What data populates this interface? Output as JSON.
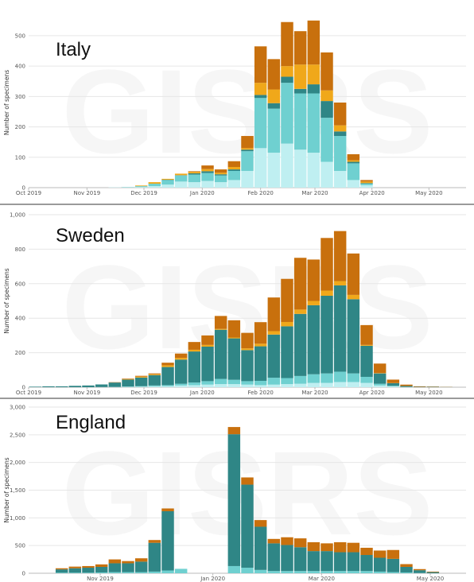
{
  "colors": {
    "pale": "#bfeff1",
    "light": "#6fd0d0",
    "dark": "#2f8686",
    "yellow": "#f0a81a",
    "orange": "#c8700d",
    "grid": "#e6e6e6",
    "axis": "#bbbbbb"
  },
  "chart_data": [
    {
      "type": "bar",
      "stacked": true,
      "title": "Italy",
      "ylabel": "Number of specimens",
      "watermark": "GISRS",
      "ylim": [
        0,
        560
      ],
      "yticks": [
        0,
        100,
        200,
        300,
        400,
        500
      ],
      "ytick_labels": [
        "0",
        "100",
        "200",
        "300",
        "400",
        "500"
      ],
      "xticks": [
        {
          "label": "Oct 2019",
          "at": 0
        },
        {
          "label": "Nov 2019",
          "at": 4.4
        },
        {
          "label": "Dec 2019",
          "at": 8.7
        },
        {
          "label": "Jan 2020",
          "at": 13.1
        },
        {
          "label": "Feb 2020",
          "at": 17.5
        },
        {
          "label": "Mar 2020",
          "at": 21.6
        },
        {
          "label": "Apr 2020",
          "at": 25.9
        },
        {
          "label": "May 2020",
          "at": 30.2
        }
      ],
      "weeks": 33,
      "series": [
        {
          "color": "pale",
          "values": [
            0,
            0,
            0,
            0,
            0,
            0,
            1,
            1,
            2,
            5,
            10,
            20,
            18,
            22,
            18,
            25,
            55,
            130,
            115,
            145,
            125,
            115,
            85,
            55,
            25,
            8,
            0,
            0,
            0,
            0,
            0,
            0,
            0
          ]
        },
        {
          "color": "light",
          "values": [
            0,
            0,
            0,
            0,
            0,
            0,
            0,
            1,
            3,
            8,
            15,
            20,
            25,
            26,
            22,
            30,
            65,
            165,
            145,
            200,
            185,
            195,
            145,
            115,
            55,
            5,
            0,
            0,
            0,
            0,
            0,
            0,
            0
          ]
        },
        {
          "color": "dark",
          "values": [
            0,
            0,
            0,
            0,
            0,
            0,
            0,
            0,
            0,
            0,
            1,
            1,
            4,
            6,
            4,
            5,
            5,
            10,
            18,
            20,
            15,
            30,
            55,
            15,
            5,
            2,
            0,
            0,
            0,
            0,
            0,
            0,
            0
          ]
        },
        {
          "color": "yellow",
          "values": [
            0,
            0,
            0,
            0,
            0,
            0,
            0,
            0,
            2,
            5,
            3,
            5,
            5,
            7,
            5,
            8,
            5,
            40,
            45,
            35,
            80,
            65,
            35,
            20,
            5,
            5,
            0,
            0,
            0,
            0,
            0,
            0,
            0
          ]
        },
        {
          "color": "orange",
          "values": [
            0,
            0,
            0,
            0,
            0,
            0,
            0,
            0,
            0,
            0,
            0,
            0,
            2,
            12,
            11,
            19,
            40,
            120,
            100,
            145,
            110,
            145,
            125,
            75,
            20,
            5,
            0,
            0,
            0,
            0,
            0,
            0,
            0
          ]
        }
      ]
    },
    {
      "type": "bar",
      "stacked": true,
      "title": "Sweden",
      "ylabel": "Number of specimens",
      "watermark": "GISRS",
      "ylim": [
        0,
        1000
      ],
      "yticks": [
        0,
        200,
        400,
        600,
        800,
        1000
      ],
      "ytick_labels": [
        "0",
        "200",
        "400",
        "600",
        "800",
        "1,000"
      ],
      "xticks": [
        {
          "label": "Oct 2019",
          "at": 0
        },
        {
          "label": "Nov 2019",
          "at": 4.4
        },
        {
          "label": "Dec 2019",
          "at": 8.7
        },
        {
          "label": "Jan 2020",
          "at": 13.1
        },
        {
          "label": "Feb 2020",
          "at": 17.5
        },
        {
          "label": "Mar 2020",
          "at": 21.6
        },
        {
          "label": "Apr 2020",
          "at": 25.9
        },
        {
          "label": "May 2020",
          "at": 30.2
        }
      ],
      "weeks": 33,
      "series": [
        {
          "color": "pale",
          "values": [
            0,
            0,
            0,
            0,
            0,
            1,
            1,
            2,
            3,
            5,
            6,
            10,
            12,
            15,
            18,
            18,
            15,
            12,
            15,
            18,
            20,
            25,
            25,
            30,
            30,
            25,
            10,
            5,
            1,
            0,
            0,
            0,
            0
          ]
        },
        {
          "color": "light",
          "values": [
            0,
            0,
            0,
            0,
            0,
            0,
            1,
            2,
            3,
            5,
            6,
            10,
            15,
            20,
            30,
            25,
            20,
            25,
            40,
            35,
            45,
            50,
            55,
            60,
            50,
            35,
            10,
            3,
            1,
            0,
            0,
            0,
            0
          ]
        },
        {
          "color": "dark",
          "values": [
            3,
            5,
            5,
            8,
            10,
            15,
            25,
            40,
            50,
            60,
            105,
            140,
            180,
            200,
            285,
            240,
            180,
            200,
            250,
            300,
            360,
            400,
            450,
            500,
            430,
            180,
            60,
            15,
            5,
            2,
            2,
            1,
            0
          ]
        },
        {
          "color": "yellow",
          "values": [
            0,
            0,
            0,
            0,
            0,
            0,
            0,
            3,
            5,
            5,
            10,
            10,
            10,
            10,
            5,
            5,
            10,
            15,
            20,
            25,
            25,
            25,
            30,
            25,
            25,
            5,
            2,
            1,
            0,
            0,
            0,
            0,
            0
          ]
        },
        {
          "color": "orange",
          "values": [
            0,
            0,
            0,
            0,
            0,
            0,
            2,
            3,
            5,
            5,
            15,
            25,
            45,
            55,
            75,
            100,
            90,
            125,
            195,
            250,
            300,
            240,
            305,
            290,
            240,
            115,
            55,
            20,
            8,
            3,
            2,
            1,
            0
          ]
        }
      ]
    },
    {
      "type": "bar",
      "stacked": true,
      "title": "England",
      "ylabel": "Number of specimens",
      "watermark": "GISRS",
      "ylim": [
        0,
        3000
      ],
      "yticks": [
        0,
        500,
        1000,
        1500,
        2000,
        2500,
        3000
      ],
      "ytick_labels": [
        "0",
        "500",
        "1,000",
        "1,500",
        "2,000",
        "2,500",
        "3,000"
      ],
      "xticks": [
        {
          "label": "Nov 2019",
          "at": 5.4
        },
        {
          "label": "Jan 2020",
          "at": 13.9
        },
        {
          "label": "Mar 2020",
          "at": 22.1
        },
        {
          "label": "May 2020",
          "at": 30.3
        }
      ],
      "weeks": 33,
      "series": [
        {
          "color": "pale",
          "values": [
            0,
            0,
            0,
            0,
            0,
            0,
            0,
            0,
            0,
            0,
            0,
            0,
            0,
            0,
            0,
            0,
            0,
            0,
            0,
            0,
            0,
            0,
            0,
            0,
            0,
            0,
            0,
            0,
            0,
            0,
            0,
            0,
            0
          ]
        },
        {
          "color": "light",
          "values": [
            0,
            0,
            10,
            10,
            10,
            15,
            20,
            20,
            20,
            30,
            50,
            80,
            0,
            0,
            0,
            130,
            100,
            60,
            40,
            40,
            40,
            40,
            40,
            40,
            40,
            40,
            30,
            20,
            15,
            5,
            0,
            0,
            0
          ]
        },
        {
          "color": "dark",
          "values": [
            0,
            0,
            60,
            80,
            90,
            100,
            160,
            160,
            190,
            520,
            1070,
            0,
            0,
            0,
            0,
            2380,
            1500,
            780,
            500,
            470,
            430,
            360,
            360,
            340,
            340,
            290,
            250,
            240,
            100,
            50,
            20,
            0,
            0
          ]
        },
        {
          "color": "yellow",
          "values": [
            0,
            0,
            0,
            0,
            0,
            0,
            0,
            0,
            0,
            0,
            0,
            0,
            0,
            0,
            0,
            0,
            0,
            0,
            0,
            0,
            0,
            0,
            0,
            0,
            0,
            0,
            0,
            0,
            0,
            0,
            0,
            0,
            0
          ]
        },
        {
          "color": "orange",
          "values": [
            0,
            0,
            20,
            30,
            30,
            45,
            70,
            40,
            60,
            50,
            50,
            0,
            0,
            0,
            0,
            130,
            130,
            120,
            80,
            140,
            160,
            160,
            140,
            180,
            170,
            130,
            130,
            160,
            50,
            20,
            10,
            0,
            0
          ]
        }
      ]
    }
  ]
}
